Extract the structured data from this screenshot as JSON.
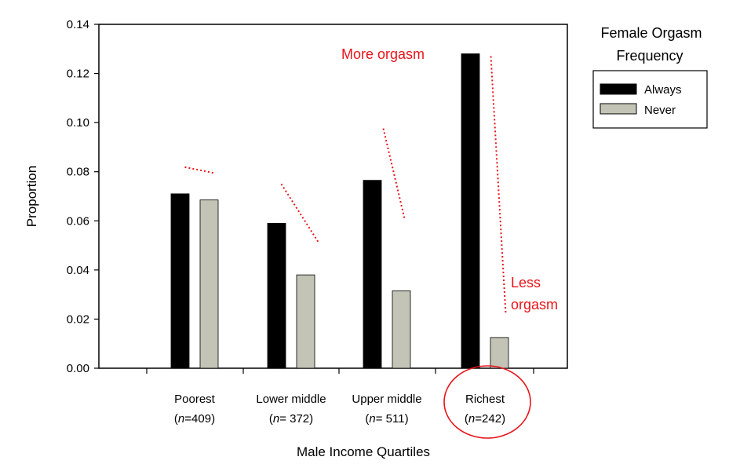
{
  "chart_data": {
    "type": "bar",
    "title": "",
    "xlabel": "Male Income Quartiles",
    "ylabel": "Proportion",
    "ylim": [
      0,
      0.14
    ],
    "yticks": [
      "0.00",
      "0.02",
      "0.04",
      "0.06",
      "0.08",
      "0.10",
      "0.12",
      "0.14"
    ],
    "grid": false,
    "legend": {
      "title_lines": [
        "Female Orgasm",
        "Frequency"
      ],
      "placement": "top-right"
    },
    "categories": [
      {
        "line1": "Poorest",
        "n_text": "=409",
        "n_spaced": false
      },
      {
        "line1": "Lower middle",
        "n_text": "= 372",
        "n_spaced": true
      },
      {
        "line1": "Upper middle",
        "n_text": "= 511",
        "n_spaced": true
      },
      {
        "line1": "Richest",
        "n_text": "=242",
        "n_spaced": false
      }
    ],
    "series": [
      {
        "name": "Always",
        "color": "#000000",
        "values": [
          0.071,
          0.059,
          0.0765,
          0.128
        ]
      },
      {
        "name": "Never",
        "color": "#c3c3b6",
        "values": [
          0.0685,
          0.038,
          0.0315,
          0.0125
        ]
      }
    ],
    "annotations": {
      "more": "More orgasm",
      "less_line1": "Less",
      "less_line2": "orgasm",
      "color": "#e8141b",
      "highlight_category": "Richest"
    },
    "n_symbol": "n"
  }
}
